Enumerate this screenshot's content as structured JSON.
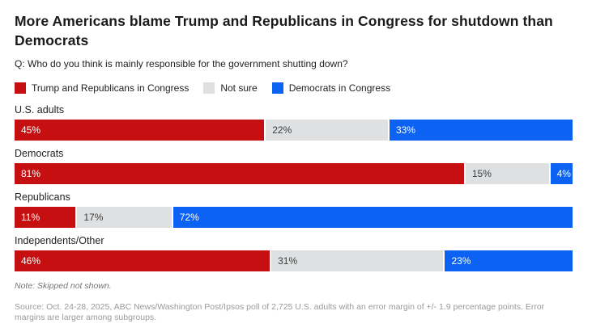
{
  "title": "More Americans blame Trump and Republicans in Congress for shutdown than Democrats",
  "subtitle": "Q: Who do you think is mainly responsible for the government shutting down?",
  "note": "Note: Skipped not shown.",
  "source": "Source: Oct. 24-28, 2025, ABC News/Washington Post/Ipsos poll of 2,725 U.S. adults with an error margin of +/- 1.9 percentage points. Error margins are larger among subgroups.",
  "chart_data": {
    "type": "bar",
    "stacked": true,
    "orientation": "horizontal",
    "title": "More Americans blame Trump and Republicans in Congress for shutdown than Democrats",
    "xlabel": "",
    "ylabel": "",
    "xlim": [
      0,
      100
    ],
    "grid": false,
    "legend_position": "top",
    "value_suffix": "%",
    "categories": [
      "U.S. adults",
      "Democrats",
      "Republicans",
      "Independents/Other"
    ],
    "series": [
      {
        "name": "Trump and Republicans in Congress",
        "color": "#c50f10",
        "values": [
          45,
          81,
          11,
          46
        ],
        "labels": [
          "45%",
          "81%",
          "11%",
          "46%"
        ]
      },
      {
        "name": "Not sure",
        "color": "#dfe0e2",
        "values": [
          22,
          15,
          17,
          31
        ],
        "labels": [
          "22%",
          "15%",
          "17%",
          "31%"
        ]
      },
      {
        "name": "Democrats in Congress",
        "color": "#0c62f2",
        "values": [
          33,
          4,
          72,
          23
        ],
        "labels": [
          "33%",
          "4%",
          "72%",
          "23%"
        ]
      }
    ]
  }
}
